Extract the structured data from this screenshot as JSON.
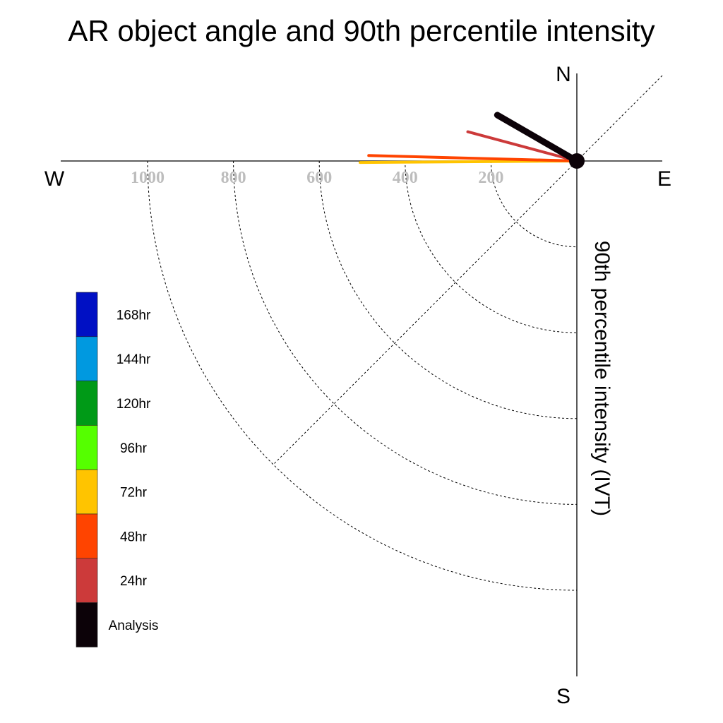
{
  "chart_data": {
    "type": "polar-line",
    "title": "AR object angle and 90th percentile intensity",
    "ylabel": "90th percentile intensity (IVT)",
    "directions": {
      "north": "N",
      "south": "S",
      "east": "E",
      "west": "W"
    },
    "ticks": [
      "1000",
      "800",
      "600",
      "400",
      "200"
    ],
    "tick_values": [
      1000,
      800,
      600,
      400,
      200
    ],
    "rlim": [
      0,
      1200
    ],
    "grid": true,
    "legend_position": "left",
    "legend": [
      {
        "label": "168hr",
        "color": "#0010c4"
      },
      {
        "label": "144hr",
        "color": "#0099e0"
      },
      {
        "label": "120hr",
        "color": "#009a17"
      },
      {
        "label": "96hr",
        "color": "#55ff00"
      },
      {
        "label": "72hr",
        "color": "#ffc400"
      },
      {
        "label": "48hr",
        "color": "#ff4400"
      },
      {
        "label": "24hr",
        "color": "#cc3a3a"
      },
      {
        "label": "Analysis",
        "color": "#0c0208"
      }
    ],
    "series": [
      {
        "name": "72hr",
        "angle_deg": 90.4,
        "intensity": 505,
        "color": "#ffc400"
      },
      {
        "name": "48hr",
        "angle_deg": 88.5,
        "intensity": 485,
        "color": "#ff4400"
      },
      {
        "name": "24hr",
        "angle_deg": 75.0,
        "intensity": 263,
        "color": "#cc3a3a"
      },
      {
        "name": "Analysis",
        "angle_deg": 60.0,
        "intensity": 214,
        "color": "#0c0208"
      }
    ]
  }
}
